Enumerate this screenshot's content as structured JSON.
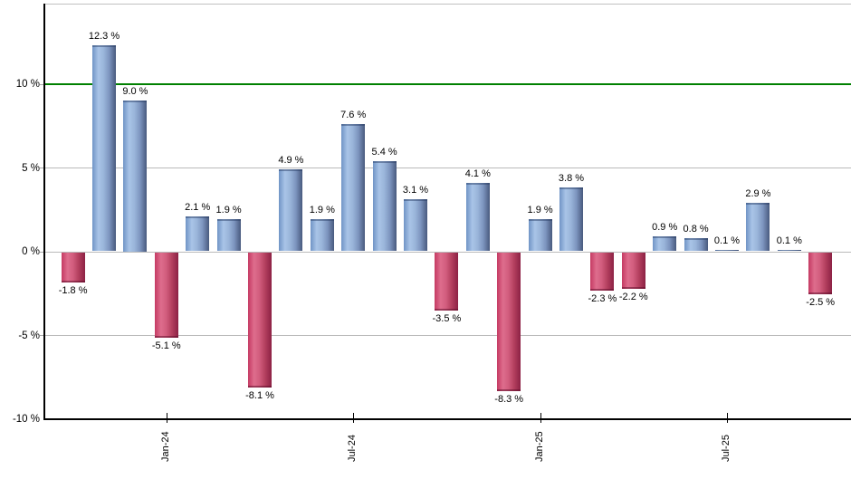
{
  "chart_data": {
    "type": "bar",
    "title": "",
    "xlabel": "",
    "ylabel": "",
    "ylim": [
      -10,
      14.76
    ],
    "grid": true,
    "legend": false,
    "bars": [
      {
        "label": "-1.8 %",
        "value": -1.8
      },
      {
        "label": "12.3 %",
        "value": 12.3
      },
      {
        "label": "9.0 %",
        "value": 9.0
      },
      {
        "label": "-5.1 %",
        "value": -5.1
      },
      {
        "label": "2.1 %",
        "value": 2.1
      },
      {
        "label": "1.9 %",
        "value": 1.9
      },
      {
        "label": "-8.1 %",
        "value": -8.1
      },
      {
        "label": "4.9 %",
        "value": 4.9
      },
      {
        "label": "1.9 %",
        "value": 1.9
      },
      {
        "label": "7.6 %",
        "value": 7.6
      },
      {
        "label": "5.4 %",
        "value": 5.4
      },
      {
        "label": "3.1 %",
        "value": 3.1
      },
      {
        "label": "-3.5 %",
        "value": -3.5
      },
      {
        "label": "4.1 %",
        "value": 4.1
      },
      {
        "label": "-8.3 %",
        "value": -8.3
      },
      {
        "label": "1.9 %",
        "value": 1.9
      },
      {
        "label": "3.8 %",
        "value": 3.8
      },
      {
        "label": "-2.3 %",
        "value": -2.3
      },
      {
        "label": "-2.2 %",
        "value": -2.2
      },
      {
        "label": "0.9 %",
        "value": 0.9
      },
      {
        "label": "0.8 %",
        "value": 0.8
      },
      {
        "label": "0.1 %",
        "value": 0.1
      },
      {
        "label": "2.9 %",
        "value": 2.9
      },
      {
        "label": "0.1 %",
        "value": 0.1
      },
      {
        "label": "-2.5 %",
        "value": -2.5
      }
    ],
    "x_ticks": [
      {
        "label": "Jan-24",
        "bar_index": 3
      },
      {
        "label": "Jul-24",
        "bar_index": 9
      },
      {
        "label": "Jan-25",
        "bar_index": 15
      },
      {
        "label": "Jul-25",
        "bar_index": 21
      }
    ],
    "y_ticks": [
      {
        "label": "10 %",
        "value": 10
      },
      {
        "label": "5 %",
        "value": 5
      },
      {
        "label": "0 %",
        "value": 0
      },
      {
        "label": "-5 %",
        "value": -5
      },
      {
        "label": "-10 %",
        "value": -10
      }
    ],
    "reference_line": {
      "value": 10,
      "color": "#008000"
    },
    "colors": {
      "positive_bar_edge": "#7094c6",
      "positive_bar_highlight": "#a9c4e7",
      "positive_bar_dark_edge": "#485a7e",
      "negative_bar_edge": "#c53a63",
      "negative_bar_highlight": "#de6d8d",
      "negative_bar_dark_edge": "#8c2144",
      "gridline": "#b9b9b9",
      "axis": "#000000",
      "text": "#000000",
      "background": "#ffffff"
    }
  }
}
